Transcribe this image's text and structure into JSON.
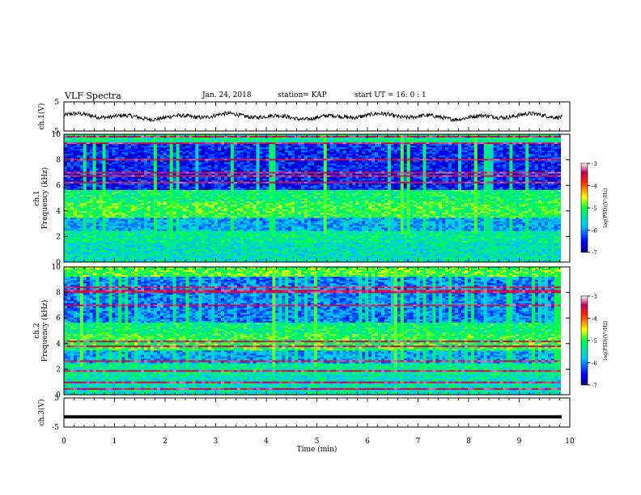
{
  "header": {
    "title": "VLF Spectra",
    "date": "Jan. 24, 2018",
    "station": "station= KAP",
    "start": "start UT =   16: 0  : 1"
  },
  "chart_data": {
    "type": "heatmap",
    "xlabel": "Time (min)",
    "xlim": [
      0,
      10
    ],
    "xticks": [
      "0",
      "1",
      "2",
      "3",
      "4",
      "5",
      "6",
      "7",
      "8",
      "9",
      "10"
    ],
    "panels": [
      {
        "name": "ch.1(V)",
        "type": "line",
        "ylabel": "ch.1(V)",
        "ylim": [
          -5,
          5
        ],
        "yticks": [
          "5",
          "-5"
        ],
        "series_description": "noisy waveform oscillating roughly between -1.5 and 1.5 V over 0-9.8 min"
      },
      {
        "name": "ch.1 spectrogram",
        "type": "heatmap",
        "ylabel": "ch.1 Frequency (kHz)",
        "ylim": [
          0,
          10
        ],
        "yticks": [
          "0",
          "2",
          "4",
          "6",
          "8",
          "10"
        ]
      },
      {
        "name": "ch.2 spectrogram",
        "type": "heatmap",
        "ylabel": "ch.2 Frequency (kHz)",
        "ylim": [
          0,
          10
        ],
        "yticks": [
          "0",
          "2",
          "4",
          "6",
          "8",
          "10"
        ]
      },
      {
        "name": "ch.3(V)",
        "type": "line",
        "ylabel": "ch.3(V)",
        "ylim": [
          -5,
          5
        ],
        "yticks": [
          "5",
          "-5"
        ],
        "constant_value": -1.5
      }
    ],
    "colorbar": {
      "label": "log(PSD)(V²/Hz)",
      "range": [
        -7,
        -3
      ],
      "ticks": [
        "-3",
        "-4",
        "-5",
        "-6",
        "-7"
      ]
    }
  }
}
